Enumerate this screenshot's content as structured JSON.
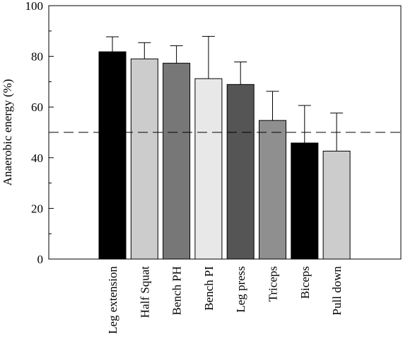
{
  "chart_data": {
    "type": "bar",
    "title": "",
    "xlabel": "",
    "ylabel": "Anaerobic energy (%)",
    "ylim": [
      0,
      100
    ],
    "yticks": [
      0,
      20,
      40,
      60,
      80,
      100
    ],
    "grid": false,
    "categories": [
      "Leg extension",
      "Half Squat",
      "Bench PH",
      "Bench PI",
      "Leg press",
      "Triceps",
      "Biceps",
      "Pull down"
    ],
    "series": [
      {
        "values": [
          81.8,
          79.0,
          77.3,
          71.2,
          68.9,
          54.7,
          45.8,
          42.6
        ],
        "error_upper": [
          5.9,
          6.4,
          6.9,
          16.7,
          8.9,
          11.5,
          14.8,
          15.0
        ],
        "colors": [
          "#000000",
          "#cccccc",
          "#777777",
          "#e8e8e8",
          "#555555",
          "#8f8f8f",
          "#000000",
          "#cccccc"
        ]
      }
    ],
    "reference_line": {
      "y": 50,
      "style": "dashed"
    }
  }
}
